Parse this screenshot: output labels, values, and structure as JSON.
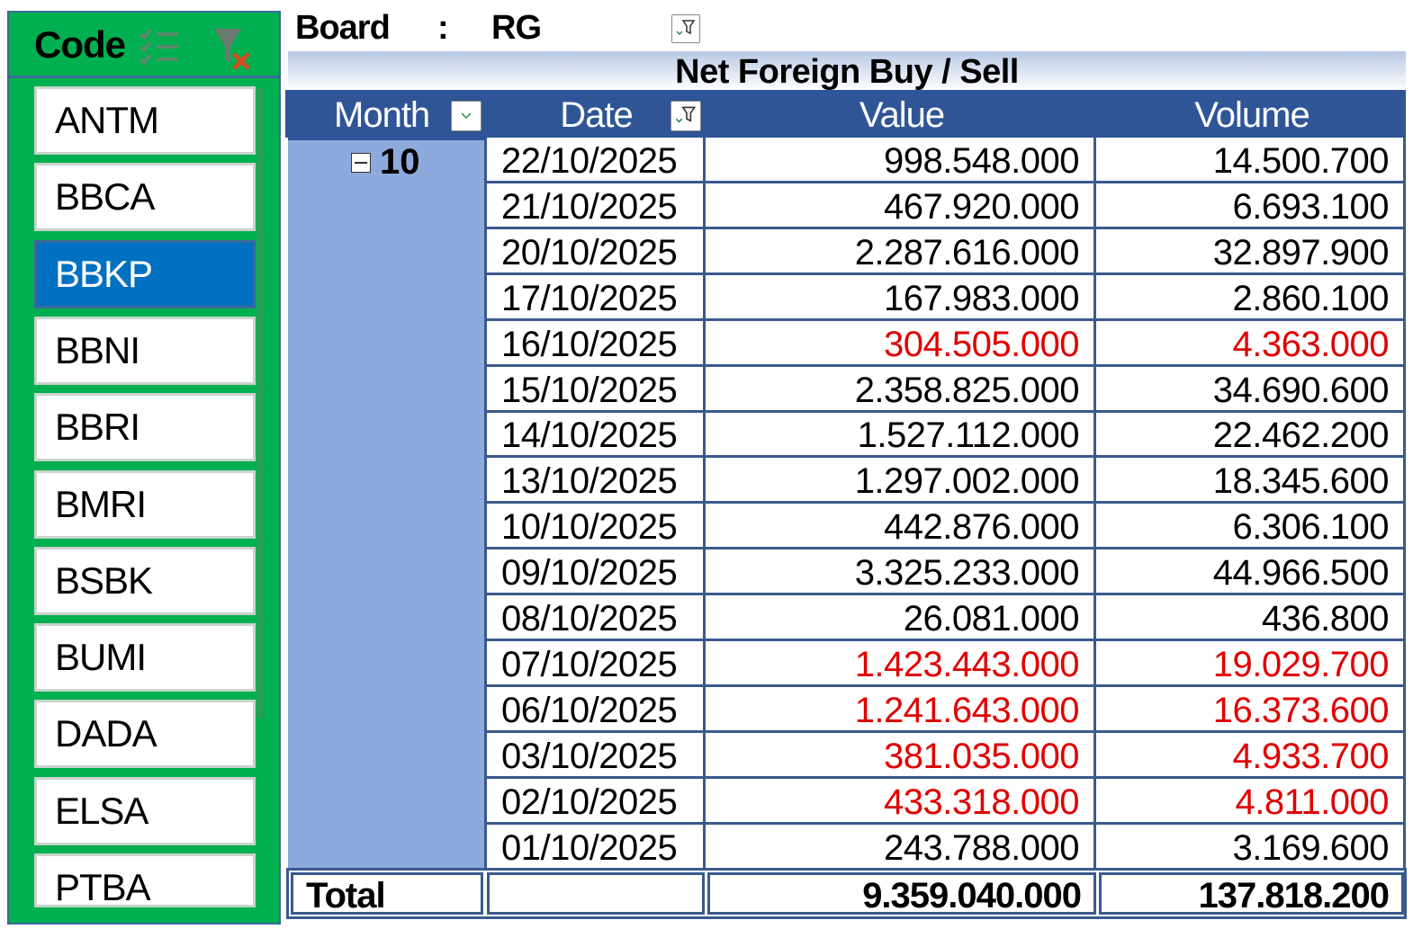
{
  "slicer": {
    "title": "Code",
    "icons": [
      "multi-select-icon",
      "clear-filter-icon"
    ],
    "selected": "BBKP",
    "items": [
      "ANTM",
      "BBCA",
      "BBKP",
      "BBNI",
      "BBRI",
      "BMRI",
      "BSBK",
      "BUMI",
      "DADA",
      "ELSA",
      "PTBA"
    ]
  },
  "board": {
    "label": "Board",
    "sep": ":",
    "value": "RG"
  },
  "pivot": {
    "title": "Net Foreign Buy / Sell",
    "headers": {
      "month": "Month",
      "date": "Date",
      "value": "Value",
      "volume": "Volume"
    },
    "month_group": "10",
    "rows": [
      {
        "date": "22/10/2025",
        "value": "998.548.000",
        "volume": "14.500.700",
        "negative": false
      },
      {
        "date": "21/10/2025",
        "value": "467.920.000",
        "volume": "6.693.100",
        "negative": false
      },
      {
        "date": "20/10/2025",
        "value": "2.287.616.000",
        "volume": "32.897.900",
        "negative": false
      },
      {
        "date": "17/10/2025",
        "value": "167.983.000",
        "volume": "2.860.100",
        "negative": false
      },
      {
        "date": "16/10/2025",
        "value": "304.505.000",
        "volume": "4.363.000",
        "negative": true
      },
      {
        "date": "15/10/2025",
        "value": "2.358.825.000",
        "volume": "34.690.600",
        "negative": false
      },
      {
        "date": "14/10/2025",
        "value": "1.527.112.000",
        "volume": "22.462.200",
        "negative": false
      },
      {
        "date": "13/10/2025",
        "value": "1.297.002.000",
        "volume": "18.345.600",
        "negative": false
      },
      {
        "date": "10/10/2025",
        "value": "442.876.000",
        "volume": "6.306.100",
        "negative": false
      },
      {
        "date": "09/10/2025",
        "value": "3.325.233.000",
        "volume": "44.966.500",
        "negative": false
      },
      {
        "date": "08/10/2025",
        "value": "26.081.000",
        "volume": "436.800",
        "negative": false
      },
      {
        "date": "07/10/2025",
        "value": "1.423.443.000",
        "volume": "19.029.700",
        "negative": true
      },
      {
        "date": "06/10/2025",
        "value": "1.241.643.000",
        "volume": "16.373.600",
        "negative": true
      },
      {
        "date": "03/10/2025",
        "value": "381.035.000",
        "volume": "4.933.700",
        "negative": true
      },
      {
        "date": "02/10/2025",
        "value": "433.318.000",
        "volume": "4.811.000",
        "negative": true
      },
      {
        "date": "01/10/2025",
        "value": "243.788.000",
        "volume": "3.169.600",
        "negative": false
      }
    ],
    "total": {
      "label": "Total",
      "value": "9.359.040.000",
      "volume": "137.818.200"
    },
    "negative_color": "#e00000"
  }
}
